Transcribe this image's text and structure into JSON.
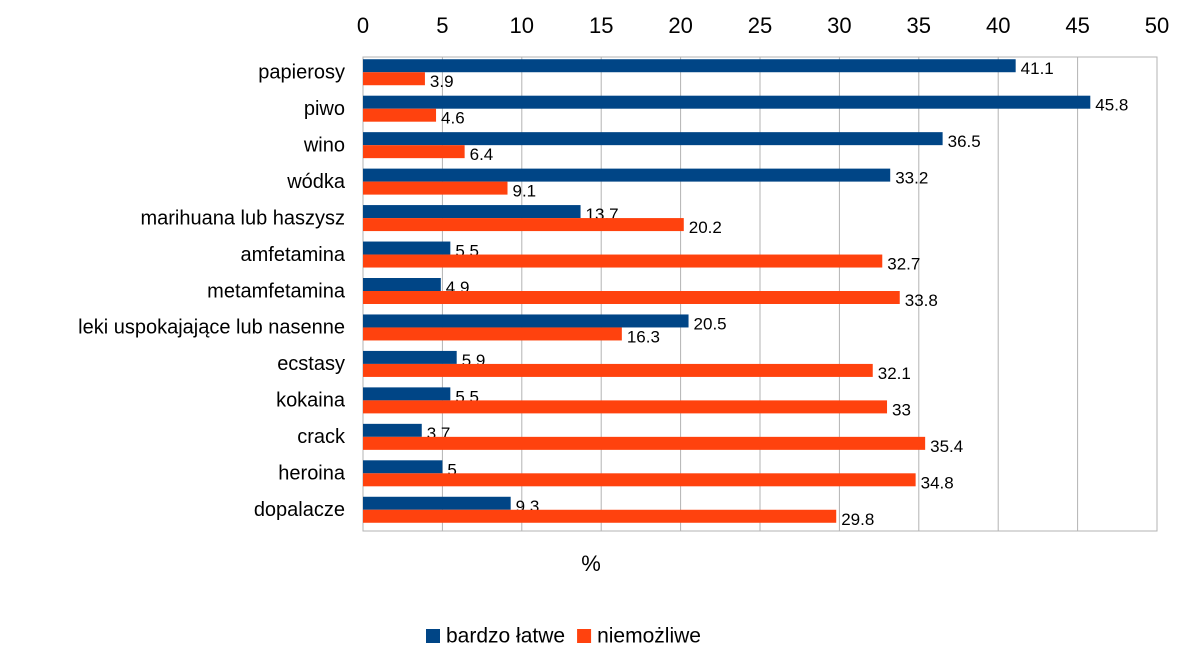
{
  "chart_data": {
    "type": "hbar",
    "categories": [
      "papierosy",
      "piwo",
      "wino",
      "wódka",
      "marihuana lub haszysz",
      "amfetamina",
      "metamfetamina",
      "leki uspokajające lub nasenne",
      "ecstasy",
      "kokaina",
      "crack",
      "heroina",
      "dopalacze"
    ],
    "series": [
      {
        "name": "bardzo łatwe",
        "color": "#004586",
        "values": [
          41.1,
          45.8,
          36.5,
          33.2,
          13.7,
          5.5,
          4.9,
          20.5,
          5.9,
          5.5,
          3.7,
          5,
          9.3
        ]
      },
      {
        "name": "niemożliwe",
        "color": "#ff420e",
        "values": [
          3.9,
          4.6,
          6.4,
          9.1,
          20.2,
          32.7,
          33.8,
          16.3,
          32.1,
          33,
          35.4,
          34.8,
          29.8
        ]
      }
    ],
    "xlabel": "%",
    "xlim": [
      0,
      50
    ],
    "xticks": [
      0,
      5,
      10,
      15,
      20,
      25,
      30,
      35,
      40,
      45,
      50
    ],
    "xaxis_position": "top",
    "grid": true,
    "legend": "bottom"
  }
}
